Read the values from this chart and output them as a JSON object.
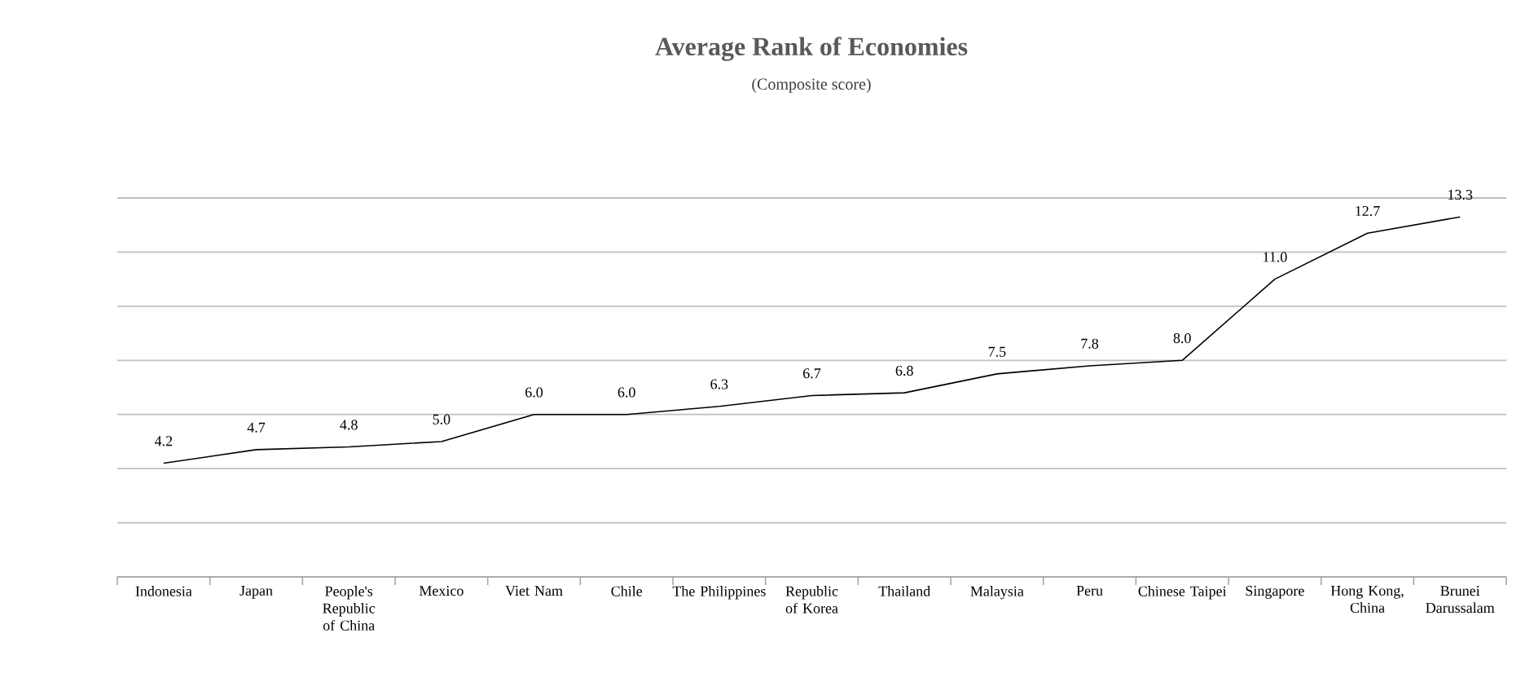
{
  "chart_data": {
    "type": "line",
    "title": "Average Rank of Economies",
    "subtitle": "(Composite score)",
    "categories": [
      "Indonesia",
      "Japan",
      "People's Republic of China",
      "Mexico",
      "Viet Nam",
      "Chile",
      "The Philippines",
      "Republic of Korea",
      "Thailand",
      "Malaysia",
      "Peru",
      "Chinese Taipei",
      "Singapore",
      "Hong Kong, China",
      "Brunei Darussalam"
    ],
    "values": [
      4.2,
      4.7,
      4.8,
      5.0,
      6.0,
      6.0,
      6.3,
      6.7,
      6.8,
      7.5,
      7.8,
      8.0,
      11.0,
      12.7,
      13.3
    ],
    "value_labels": [
      "4.2",
      "4.7",
      "4.8",
      "5.0",
      "6.0",
      "6.0",
      "6.3",
      "6.7",
      "6.8",
      "7.5",
      "7.8",
      "8.0",
      "11.0",
      "12.7",
      "13.3"
    ],
    "color": "#000000",
    "ylim": [
      0,
      14
    ],
    "yticks": [
      {
        "value": 0,
        "label": null
      },
      {
        "value": 2,
        "label": null
      },
      {
        "value": 4,
        "label": null
      },
      {
        "value": 6,
        "label": null
      },
      {
        "value": 8,
        "label": null
      },
      {
        "value": 10,
        "label": null
      },
      {
        "value": 12,
        "label": null
      },
      {
        "value": 14,
        "label": null
      }
    ],
    "tick_labels": "x",
    "grid": "y"
  }
}
